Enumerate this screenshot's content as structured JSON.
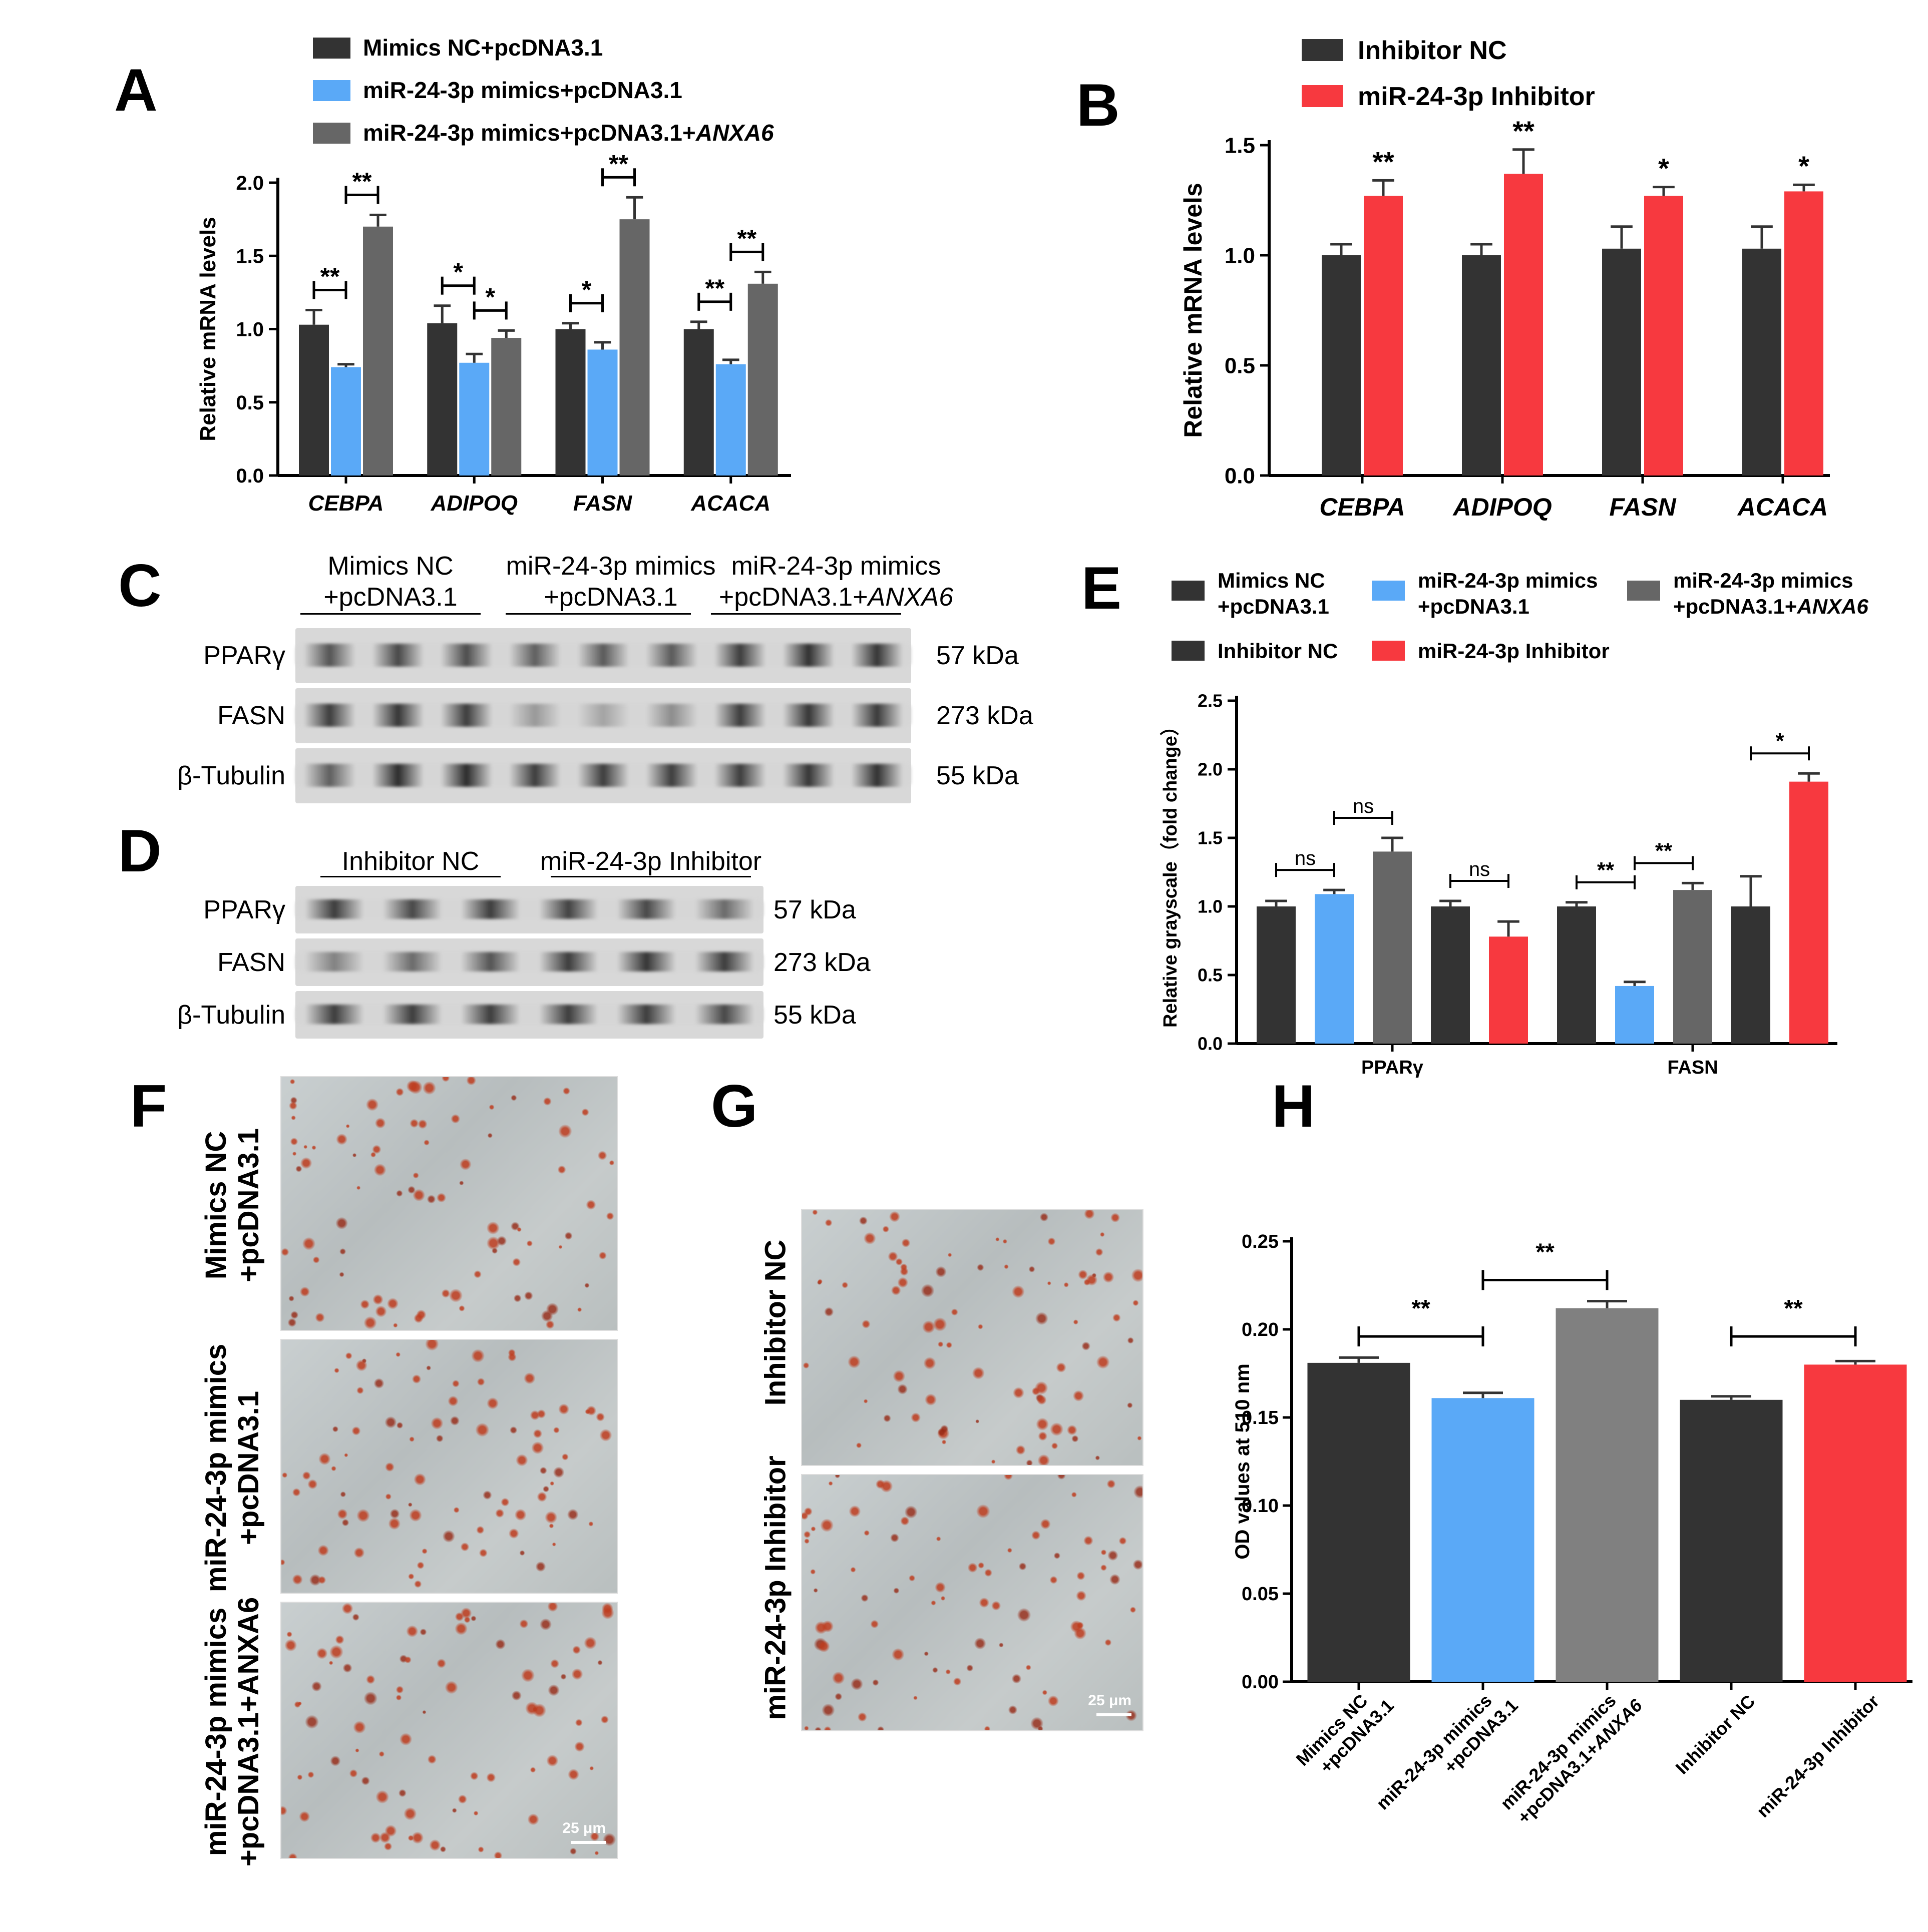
{
  "colors": {
    "dark": "#333333",
    "blue": "#5aa9f7",
    "gray": "#666666",
    "gray_h": "#808080",
    "red": "#f7393f",
    "error": "#333333"
  },
  "panel_labels": {
    "A": "A",
    "B": "B",
    "C": "C",
    "D": "D",
    "E": "E",
    "F": "F",
    "G": "G",
    "H": "H"
  },
  "panel_A": {
    "legend": [
      {
        "label": "Mimics NC+pcDNA3.1",
        "color": "dark"
      },
      {
        "label": "miR-24-3p mimics+pcDNA3.1",
        "color": "blue"
      },
      {
        "label": "miR-24-3p mimics+pcDNA3.1+",
        "italic_suffix": "ANXA6",
        "color": "gray"
      }
    ],
    "ylabel": "Relative mRNA levels",
    "yticks": [
      "0.0",
      "0.5",
      "1.0",
      "1.5",
      "2.0"
    ]
  },
  "panel_B": {
    "legend": [
      {
        "label": "Inhibitor NC",
        "color": "dark"
      },
      {
        "label": "miR-24-3p Inhibitor",
        "color": "red"
      }
    ],
    "ylabel": "Relative mRNA levels",
    "yticks": [
      "0.0",
      "0.5",
      "1.0",
      "1.5"
    ]
  },
  "panel_C": {
    "groups": [
      {
        "line1": "Mimics NC",
        "line2": "+pcDNA3.1",
        "italic": ""
      },
      {
        "line1": "miR-24-3p mimics",
        "line2": "+pcDNA3.1",
        "italic": ""
      },
      {
        "line1": "miR-24-3p mimics",
        "line2": "+pcDNA3.1+",
        "italic": "ANXA6"
      }
    ],
    "rows": [
      {
        "protein": "PPARγ",
        "size": "57 kDa",
        "intensity": [
          0.75,
          0.8,
          0.78,
          0.7,
          0.72,
          0.72,
          0.85,
          0.9,
          0.88
        ]
      },
      {
        "protein": "FASN",
        "size": "273 kDa",
        "intensity": [
          0.85,
          0.88,
          0.85,
          0.45,
          0.4,
          0.5,
          0.85,
          0.88,
          0.86
        ]
      },
      {
        "protein": "β-Tubulin",
        "size": "55 kDa",
        "intensity": [
          0.7,
          0.92,
          0.92,
          0.85,
          0.85,
          0.85,
          0.85,
          0.88,
          0.9
        ]
      }
    ]
  },
  "panel_D": {
    "groups": [
      {
        "line1": "Inhibitor NC"
      },
      {
        "line1": "miR-24-3p Inhibitor"
      }
    ],
    "rows": [
      {
        "protein": "PPARγ",
        "size": "57 kDa",
        "intensity": [
          0.85,
          0.8,
          0.85,
          0.82,
          0.8,
          0.65
        ]
      },
      {
        "protein": "FASN",
        "size": "273 kDa",
        "intensity": [
          0.55,
          0.65,
          0.75,
          0.85,
          0.88,
          0.85
        ]
      },
      {
        "protein": "β-Tubulin",
        "size": "55 kDa",
        "intensity": [
          0.85,
          0.85,
          0.85,
          0.85,
          0.85,
          0.8
        ]
      }
    ]
  },
  "panel_E": {
    "legend": [
      {
        "line1": "Mimics NC",
        "line2": "+pcDNA3.1",
        "italic": "",
        "color": "dark"
      },
      {
        "line1": "miR-24-3p mimics",
        "line2": "+pcDNA3.1",
        "italic": "",
        "color": "blue"
      },
      {
        "line1": "miR-24-3p mimics",
        "line2": "+pcDNA3.1+",
        "italic": "ANXA6",
        "color": "gray"
      },
      {
        "line1": "Inhibitor NC",
        "line2": "",
        "italic": "",
        "color": "dark"
      },
      {
        "line1": "miR-24-3p Inhibitor",
        "line2": "",
        "italic": "",
        "color": "red"
      }
    ],
    "ylabel": "Relative grayscale（fold change）",
    "yticks": [
      "0.0",
      "0.5",
      "1.0",
      "1.5",
      "2.0",
      "2.5"
    ]
  },
  "panel_F": {
    "labels": [
      {
        "line1": "Mimics NC",
        "line2": "+pcDNA3.1"
      },
      {
        "line1": "miR-24-3p mimics",
        "line2": "+pcDNA3.1"
      },
      {
        "line1": "miR-24-3p mimics",
        "line2": "+pcDNA3.1+ANXA6"
      }
    ],
    "scalebar": "25 μm"
  },
  "panel_G": {
    "labels": [
      {
        "line1": "Inhibitor NC"
      },
      {
        "line1": "miR-24-3p Inhibitor"
      }
    ],
    "scalebar": "25 μm"
  },
  "panel_H": {
    "ylabel": "OD values at 510 nm",
    "yticks": [
      "0.00",
      "0.05",
      "0.10",
      "0.15",
      "0.20",
      "0.25"
    ]
  },
  "chart_data": [
    {
      "panel": "A",
      "type": "bar",
      "categories": [
        "CEBPA",
        "ADIPOQ",
        "FASN",
        "ACACA"
      ],
      "ylabel": "Relative mRNA levels",
      "ylim": [
        0,
        2.0
      ],
      "series": [
        {
          "name": "Mimics NC+pcDNA3.1",
          "values": [
            1.03,
            1.04,
            1.0,
            1.0
          ],
          "errors": [
            0.1,
            0.12,
            0.04,
            0.05
          ]
        },
        {
          "name": "miR-24-3p mimics+pcDNA3.1",
          "values": [
            0.74,
            0.77,
            0.86,
            0.76
          ],
          "errors": [
            0.02,
            0.06,
            0.05,
            0.03
          ]
        },
        {
          "name": "miR-24-3p mimics+pcDNA3.1+ANXA6",
          "values": [
            1.7,
            0.94,
            1.75,
            1.31
          ],
          "errors": [
            0.08,
            0.05,
            0.15,
            0.08
          ]
        }
      ],
      "significance": [
        {
          "category": 0,
          "from": 0,
          "to": 1,
          "label": "**"
        },
        {
          "category": 0,
          "from": 1,
          "to": 2,
          "label": "**"
        },
        {
          "category": 1,
          "from": 0,
          "to": 1,
          "label": "*"
        },
        {
          "category": 1,
          "from": 1,
          "to": 2,
          "label": "*"
        },
        {
          "category": 2,
          "from": 0,
          "to": 1,
          "label": "*"
        },
        {
          "category": 2,
          "from": 1,
          "to": 2,
          "label": "**"
        },
        {
          "category": 3,
          "from": 0,
          "to": 1,
          "label": "**"
        },
        {
          "category": 3,
          "from": 1,
          "to": 2,
          "label": "**"
        }
      ]
    },
    {
      "panel": "B",
      "type": "bar",
      "categories": [
        "CEBPA",
        "ADIPOQ",
        "FASN",
        "ACACA"
      ],
      "ylabel": "Relative mRNA levels",
      "ylim": [
        0,
        1.5
      ],
      "series": [
        {
          "name": "Inhibitor NC",
          "values": [
            1.0,
            1.0,
            1.03,
            1.03
          ],
          "errors": [
            0.05,
            0.05,
            0.1,
            0.1
          ]
        },
        {
          "name": "miR-24-3p Inhibitor",
          "values": [
            1.27,
            1.37,
            1.27,
            1.29
          ],
          "errors": [
            0.07,
            0.11,
            0.04,
            0.03
          ]
        }
      ],
      "significance": [
        {
          "category": 0,
          "label": "**"
        },
        {
          "category": 1,
          "label": "**"
        },
        {
          "category": 2,
          "label": "*"
        },
        {
          "category": 3,
          "label": "*"
        }
      ]
    },
    {
      "panel": "E",
      "type": "bar",
      "categories": [
        "PPARγ",
        "FASN"
      ],
      "ylabel": "Relative grayscale（fold change）",
      "ylim": [
        0,
        2.5
      ],
      "series": [
        {
          "name": "Mimics NC+pcDNA3.1",
          "values": [
            1.0,
            1.0
          ],
          "errors": [
            0.04,
            0.03
          ]
        },
        {
          "name": "miR-24-3p mimics+pcDNA3.1",
          "values": [
            1.09,
            0.42
          ],
          "errors": [
            0.03,
            0.03
          ]
        },
        {
          "name": "miR-24-3p mimics+pcDNA3.1+ANXA6",
          "values": [
            1.4,
            1.12
          ],
          "errors": [
            0.1,
            0.05
          ]
        },
        {
          "name": "Inhibitor NC",
          "values": [
            1.0,
            1.0
          ],
          "errors": [
            0.04,
            0.22
          ]
        },
        {
          "name": "miR-24-3p Inhibitor",
          "values": [
            0.78,
            1.91
          ],
          "errors": [
            0.11,
            0.06
          ]
        }
      ],
      "significance": [
        {
          "category": 0,
          "from": 0,
          "to": 1,
          "label": "ns"
        },
        {
          "category": 0,
          "from": 1,
          "to": 2,
          "label": "ns"
        },
        {
          "category": 0,
          "from": 3,
          "to": 4,
          "label": "ns"
        },
        {
          "category": 1,
          "from": 0,
          "to": 1,
          "label": "**"
        },
        {
          "category": 1,
          "from": 1,
          "to": 2,
          "label": "**"
        },
        {
          "category": 1,
          "from": 3,
          "to": 4,
          "label": "*"
        }
      ]
    },
    {
      "panel": "H",
      "type": "bar",
      "categories": [
        "Mimics NC +pcDNA3.1",
        "miR-24-3p mimics +pcDNA3.1",
        "miR-24-3p mimics +pcDNA3.1+ANXA6",
        "Inhibitor NC",
        "miR-24-3p Inhibitor"
      ],
      "category_lines": [
        {
          "line1": "Mimics NC",
          "line2": "+pcDNA3.1",
          "italic": ""
        },
        {
          "line1": "miR-24-3p mimics",
          "line2": "+pcDNA3.1",
          "italic": ""
        },
        {
          "line1": "miR-24-3p mimics",
          "line2": "+pcDNA3.1+",
          "italic": "ANXA6"
        },
        {
          "line1": "Inhibitor NC",
          "line2": "",
          "italic": ""
        },
        {
          "line1": "miR-24-3p Inhibitor",
          "line2": "",
          "italic": ""
        }
      ],
      "ylabel": "OD values at 510 nm",
      "ylim": [
        0,
        0.25
      ],
      "values": [
        0.181,
        0.161,
        0.212,
        0.16,
        0.18
      ],
      "errors": [
        0.003,
        0.003,
        0.004,
        0.002,
        0.002
      ],
      "bar_colors": [
        "dark",
        "blue",
        "gray_h",
        "dark",
        "red"
      ],
      "significance": [
        {
          "from": 0,
          "to": 1,
          "label": "**"
        },
        {
          "from": 1,
          "to": 2,
          "label": "**"
        },
        {
          "from": 3,
          "to": 4,
          "label": "**"
        }
      ]
    }
  ]
}
